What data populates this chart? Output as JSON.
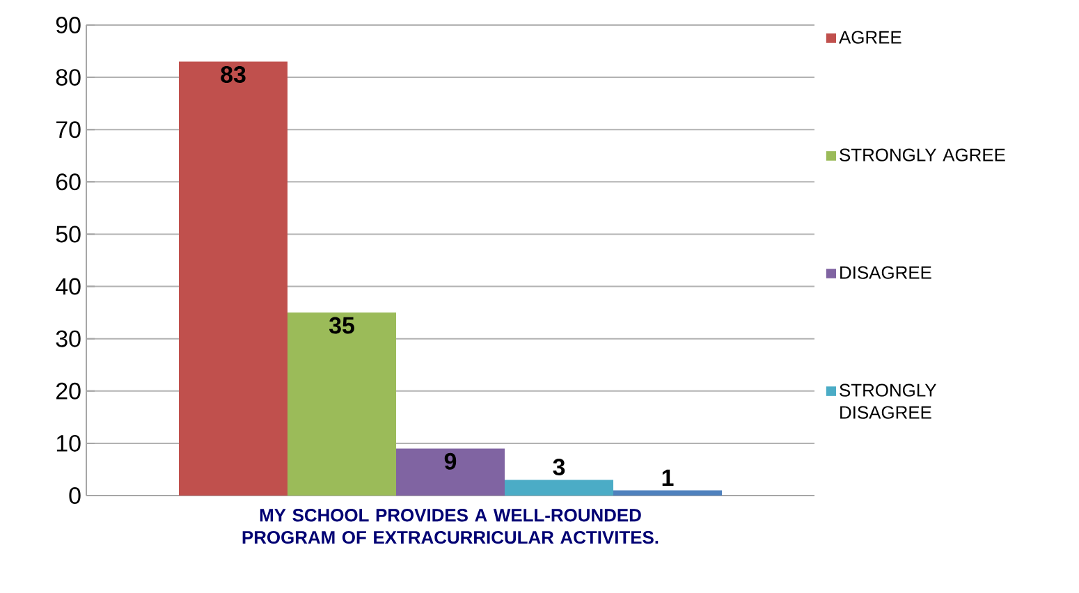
{
  "chart_data": {
    "type": "bar",
    "categories": [
      "MY SCHOOL PROVIDES A WELL-ROUNDED PROGRAM OF EXTRACURRICULAR ACTIVITES."
    ],
    "series": [
      {
        "name": "AGREE",
        "color": "#c0504d",
        "values": [
          83
        ],
        "value_labels": [
          "83"
        ]
      },
      {
        "name": "STRONGLY AGREE",
        "color": "#9bbb59",
        "values": [
          35
        ],
        "value_labels": [
          "35"
        ]
      },
      {
        "name": "DISAGREE",
        "color": "#8064a2",
        "values": [
          9
        ],
        "value_labels": [
          "9"
        ]
      },
      {
        "name": "STRONGLY DISAGREE",
        "color": "#4bacc6",
        "values": [
          3
        ],
        "value_labels": [
          "3"
        ]
      },
      {
        "color": "#4f81bd",
        "values": [
          1
        ],
        "value_labels": [
          "1"
        ]
      }
    ],
    "ylim": [
      0,
      90
    ],
    "yticks": [
      0,
      10,
      20,
      30,
      40,
      50,
      60,
      70,
      80,
      90
    ],
    "grid": "y",
    "legend": "right"
  }
}
